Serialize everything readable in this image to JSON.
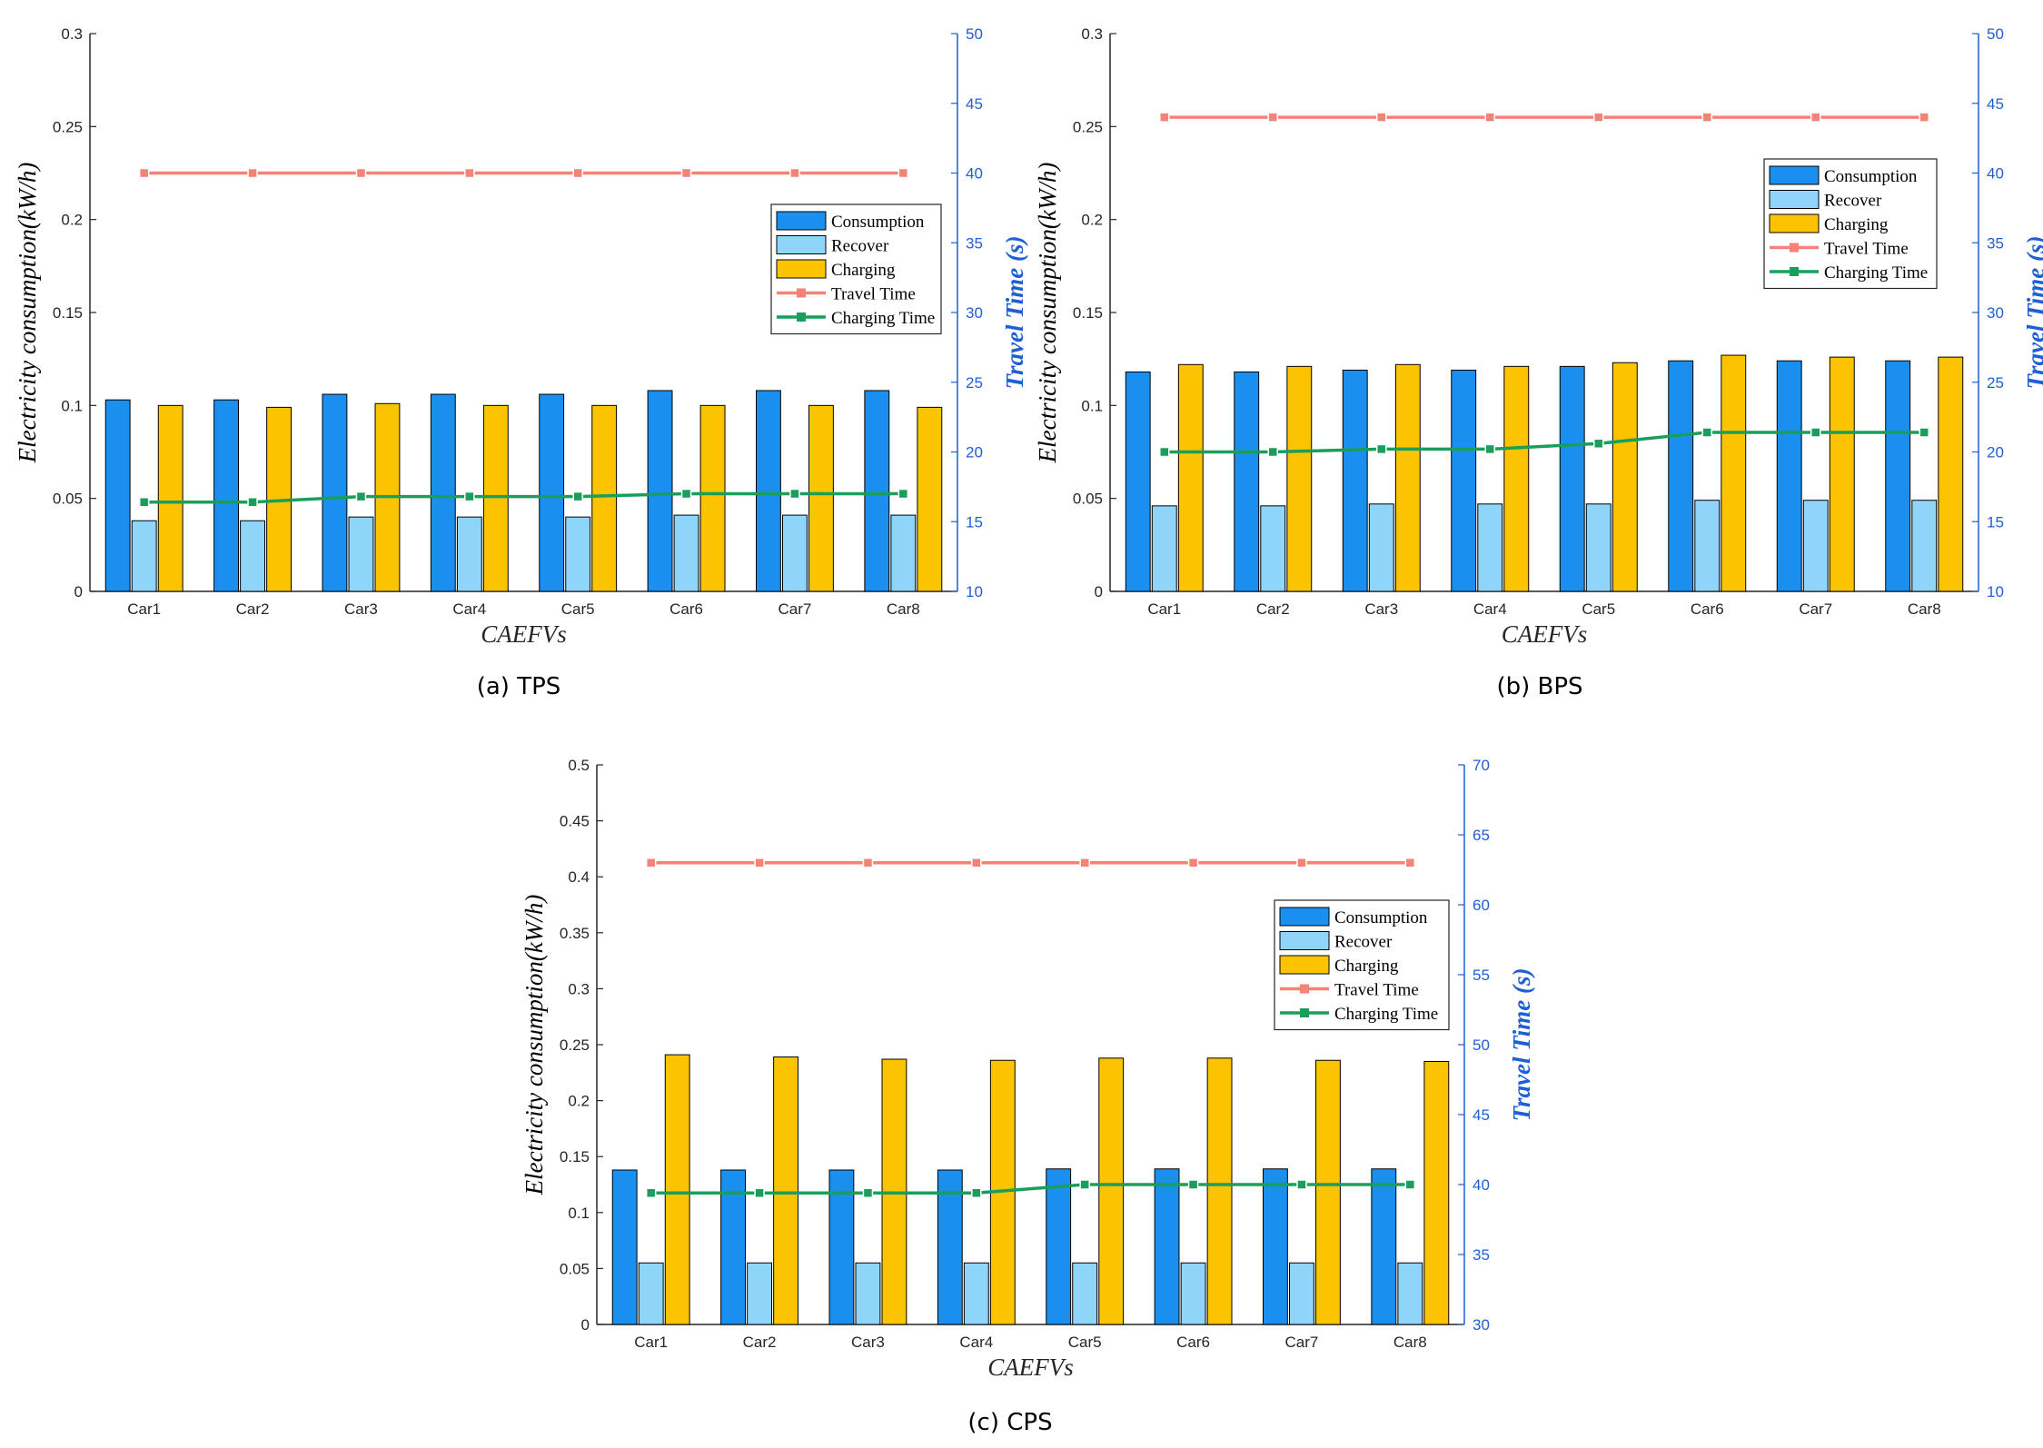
{
  "legend_labels": [
    "Consumption",
    "Recover",
    "Charging",
    "Travel Time",
    "Charging Time"
  ],
  "colors": {
    "consumption": "#1a8fee",
    "recover": "#8fd4f9",
    "charging": "#fcc400",
    "travel": "#f58276",
    "charging_time": "#1a9e5c",
    "right_axis": "#1f5fd6"
  },
  "chart_data": [
    {
      "type": "bar",
      "caption": "(a) TPS",
      "xlabel": "CAEFVs",
      "ylabel": "Electricity consumption(kW/h)",
      "y2label": "Travel Time (s)",
      "categories": [
        "Car1",
        "Car2",
        "Car3",
        "Car4",
        "Car5",
        "Car6",
        "Car7",
        "Car8"
      ],
      "ylim": [
        0,
        0.3
      ],
      "yticks": [
        0,
        0.05,
        0.1,
        0.15,
        0.2,
        0.25,
        0.3
      ],
      "ytick_labels": [
        "0",
        "0.05",
        "0.1",
        "0.15",
        "0.2",
        "0.25",
        "0.3"
      ],
      "y2lim": [
        10,
        50
      ],
      "y2ticks": [
        10,
        15,
        20,
        25,
        30,
        35,
        40,
        45,
        50
      ],
      "y2tick_labels": [
        "10",
        "15",
        "20",
        "25",
        "30",
        "35",
        "40",
        "45",
        "50"
      ],
      "legend_position": "right",
      "series": [
        {
          "name": "Consumption",
          "axis": "left",
          "kind": "bar",
          "values": [
            0.103,
            0.103,
            0.106,
            0.106,
            0.106,
            0.108,
            0.108,
            0.108
          ]
        },
        {
          "name": "Recover",
          "axis": "left",
          "kind": "bar",
          "values": [
            0.038,
            0.038,
            0.04,
            0.04,
            0.04,
            0.041,
            0.041,
            0.041
          ]
        },
        {
          "name": "Charging",
          "axis": "left",
          "kind": "bar",
          "values": [
            0.1,
            0.099,
            0.101,
            0.1,
            0.1,
            0.1,
            0.1,
            0.099
          ]
        },
        {
          "name": "Travel Time",
          "axis": "right",
          "kind": "line",
          "values": [
            40,
            40,
            40,
            40,
            40,
            40,
            40,
            40
          ]
        },
        {
          "name": "Charging Time",
          "axis": "right",
          "kind": "line",
          "values": [
            16.4,
            16.4,
            16.8,
            16.8,
            16.8,
            17.0,
            17.0,
            17.0
          ]
        }
      ]
    },
    {
      "type": "bar",
      "caption": "(b) BPS",
      "xlabel": "CAEFVs",
      "ylabel": "Electricity consumption(kW/h)",
      "y2label": "Travel Time (s)",
      "categories": [
        "Car1",
        "Car2",
        "Car3",
        "Car4",
        "Car5",
        "Car6",
        "Car7",
        "Car8"
      ],
      "ylim": [
        0,
        0.3
      ],
      "yticks": [
        0,
        0.05,
        0.1,
        0.15,
        0.2,
        0.25,
        0.3
      ],
      "ytick_labels": [
        "0",
        "0.05",
        "0.1",
        "0.15",
        "0.2",
        "0.25",
        "0.3"
      ],
      "y2lim": [
        10,
        50
      ],
      "y2ticks": [
        10,
        15,
        20,
        25,
        30,
        35,
        40,
        45,
        50
      ],
      "y2tick_labels": [
        "10",
        "15",
        "20",
        "25",
        "30",
        "35",
        "40",
        "45",
        "50"
      ],
      "legend_position": "top-right",
      "series": [
        {
          "name": "Consumption",
          "axis": "left",
          "kind": "bar",
          "values": [
            0.118,
            0.118,
            0.119,
            0.119,
            0.121,
            0.124,
            0.124,
            0.124
          ]
        },
        {
          "name": "Recover",
          "axis": "left",
          "kind": "bar",
          "values": [
            0.046,
            0.046,
            0.047,
            0.047,
            0.047,
            0.049,
            0.049,
            0.049
          ]
        },
        {
          "name": "Charging",
          "axis": "left",
          "kind": "bar",
          "values": [
            0.122,
            0.121,
            0.122,
            0.121,
            0.123,
            0.127,
            0.126,
            0.126
          ]
        },
        {
          "name": "Travel Time",
          "axis": "right",
          "kind": "line",
          "values": [
            44,
            44,
            44,
            44,
            44,
            44,
            44,
            44
          ]
        },
        {
          "name": "Charging Time",
          "axis": "right",
          "kind": "line",
          "values": [
            20.0,
            20.0,
            20.2,
            20.2,
            20.6,
            21.4,
            21.4,
            21.4
          ]
        }
      ]
    },
    {
      "type": "bar",
      "caption": "(c) CPS",
      "xlabel": "CAEFVs",
      "ylabel": "Electricity consumption(kW/h)",
      "y2label": "Travel Time (s)",
      "categories": [
        "Car1",
        "Car2",
        "Car3",
        "Car4",
        "Car5",
        "Car6",
        "Car7",
        "Car8"
      ],
      "ylim": [
        0,
        0.5
      ],
      "yticks": [
        0,
        0.05,
        0.1,
        0.15,
        0.2,
        0.25,
        0.3,
        0.35,
        0.4,
        0.45,
        0.5
      ],
      "ytick_labels": [
        "0",
        "0.05",
        "0.1",
        "0.15",
        "0.2",
        "0.25",
        "0.3",
        "0.35",
        "0.4",
        "0.45",
        "0.5"
      ],
      "y2lim": [
        30,
        70
      ],
      "y2ticks": [
        30,
        35,
        40,
        45,
        50,
        55,
        60,
        65,
        70
      ],
      "y2tick_labels": [
        "30",
        "35",
        "40",
        "45",
        "50",
        "55",
        "60",
        "65",
        "70"
      ],
      "legend_position": "top-right",
      "series": [
        {
          "name": "Consumption",
          "axis": "left",
          "kind": "bar",
          "values": [
            0.138,
            0.138,
            0.138,
            0.138,
            0.139,
            0.139,
            0.139,
            0.139
          ]
        },
        {
          "name": "Recover",
          "axis": "left",
          "kind": "bar",
          "values": [
            0.055,
            0.055,
            0.055,
            0.055,
            0.055,
            0.055,
            0.055,
            0.055
          ]
        },
        {
          "name": "Charging",
          "axis": "left",
          "kind": "bar",
          "values": [
            0.241,
            0.239,
            0.237,
            0.236,
            0.238,
            0.238,
            0.236,
            0.235
          ]
        },
        {
          "name": "Travel Time",
          "axis": "right",
          "kind": "line",
          "values": [
            63,
            63,
            63,
            63,
            63,
            63,
            63,
            63
          ]
        },
        {
          "name": "Charging Time",
          "axis": "right",
          "kind": "line",
          "values": [
            39.4,
            39.4,
            39.4,
            39.4,
            40.0,
            40.0,
            40.0,
            40.0
          ]
        }
      ]
    }
  ]
}
